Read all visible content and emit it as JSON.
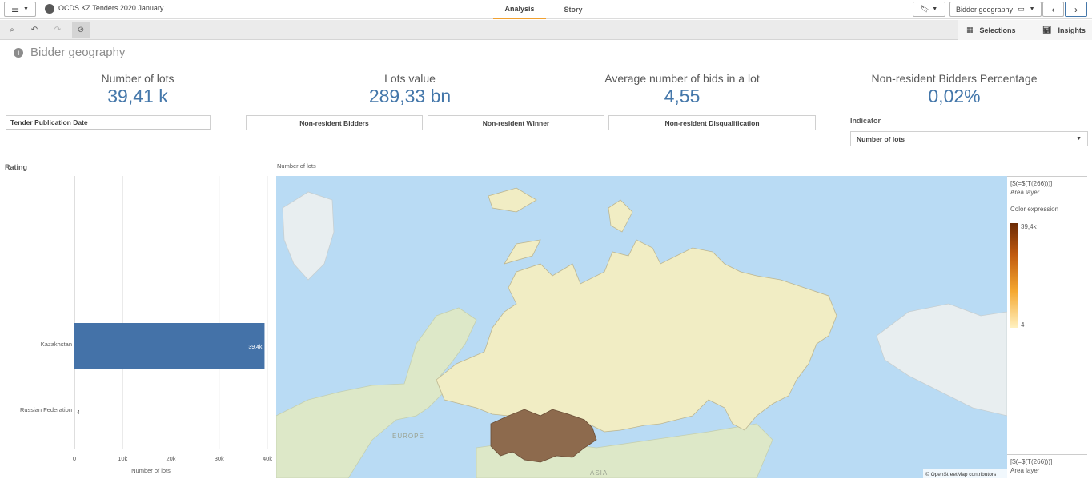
{
  "app": {
    "title": "OCDS KZ Tenders 2020 January",
    "menu_icon": "hamburger-icon"
  },
  "tabs": [
    {
      "label": "Analysis",
      "active": true
    },
    {
      "label": "Story",
      "active": false
    }
  ],
  "topbar_right": {
    "sheet_selector": "Bidder geography"
  },
  "toolbar": {
    "selections_label": "Selections",
    "insights_label": "Insights"
  },
  "sheet": {
    "title": "Bidder geography"
  },
  "kpis": [
    {
      "label": "Number of lots",
      "value": "39,41 k"
    },
    {
      "label": "Lots value",
      "value": "289,33 bn"
    },
    {
      "label": "Average number of bids in a lot",
      "value": "4,55"
    },
    {
      "label": "Non-resident Bidders Percentage",
      "value": "0,02%"
    }
  ],
  "filters": {
    "tender_date": "Tender Publication Date",
    "nonres_bidders": "Non-resident Bidders",
    "nonres_winner": "Non-resident Winner",
    "nonres_disq": "Non-resident Disqualification",
    "indicator_label": "Indicator",
    "indicator_value": "Number of lots"
  },
  "rating_chart": {
    "section_label": "Rating",
    "xlabel": "Number of lots",
    "ticks": [
      "0",
      "10k",
      "20k",
      "30k",
      "40k"
    ]
  },
  "chart_data": {
    "type": "bar",
    "orientation": "horizontal",
    "categories": [
      "Kazakhstan",
      "Russian Federation"
    ],
    "values": [
      39410,
      4
    ],
    "value_labels": [
      "39,4k",
      "4"
    ],
    "xlabel": "Number of lots",
    "xlim": [
      0,
      40000
    ],
    "color": "#4472a8"
  },
  "map": {
    "title": "Number of lots",
    "label_europe": "EUROPE",
    "label_asia": "ASIA",
    "attribution": "© OpenStreetMap contributors",
    "legend_layer_top": "[$(=$(T(266)))]",
    "legend_layer_top_sub": "Area layer",
    "legend_color_title": "Color expression",
    "legend_max": "39,4k",
    "legend_min": "4",
    "legend_layer_bottom": "[$(=$(T(266)))]",
    "legend_layer_bottom_sub": "Area layer",
    "colors": {
      "water": "#b9dbf4",
      "russia": "#f1edc4",
      "kazakhstan": "#8d6a4d",
      "land": "#dde8c8"
    }
  }
}
